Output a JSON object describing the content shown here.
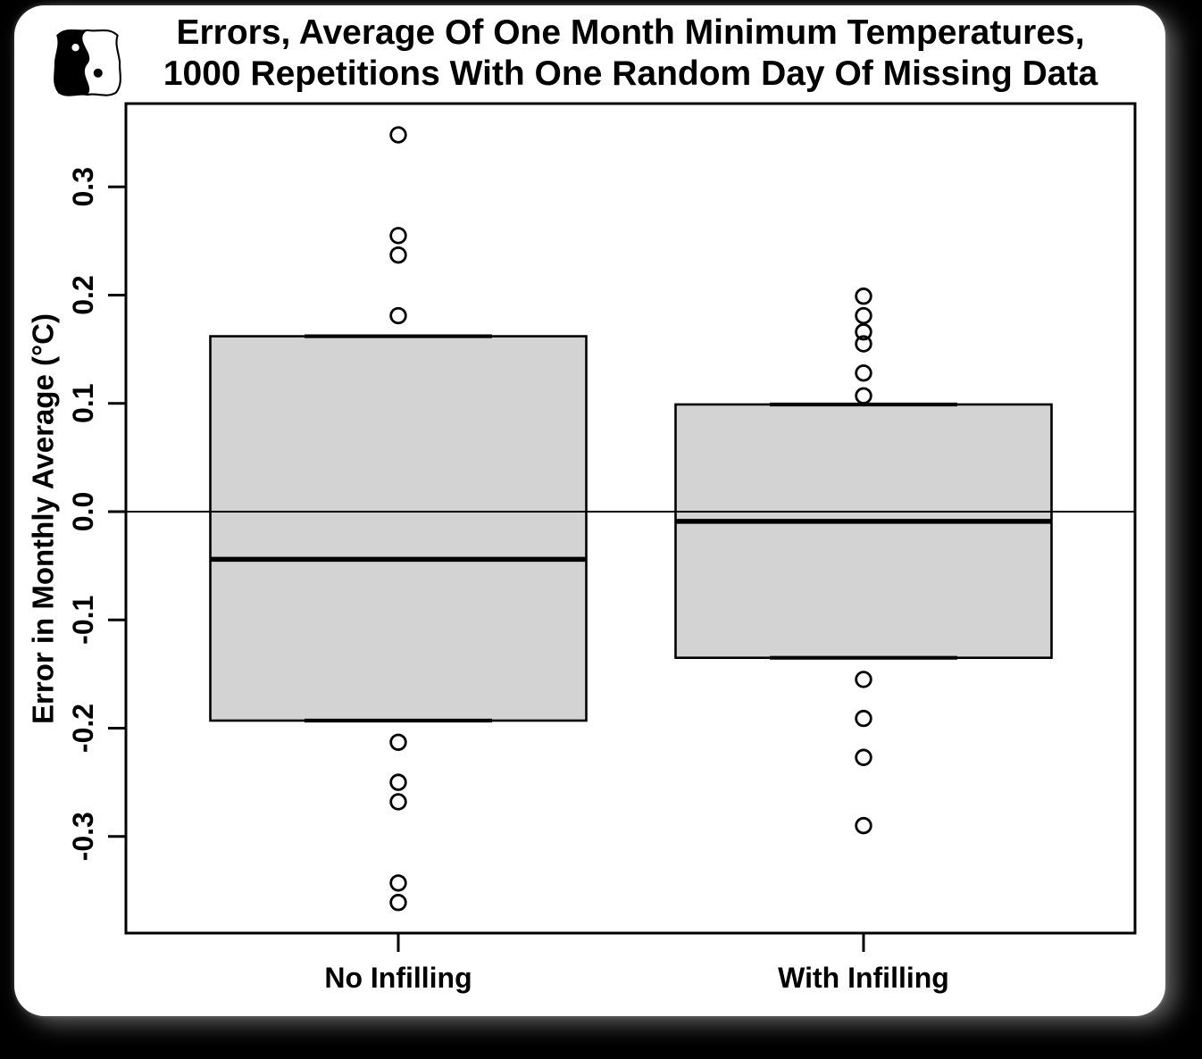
{
  "colors": {
    "background": "#000000",
    "card": "#ffffff",
    "box_fill": "#d3d3d3",
    "stroke": "#000000"
  },
  "icons": {
    "logo_icon": "yin-yang-owls"
  },
  "title": {
    "line1": "Errors, Average Of One Month Minimum Temperatures,",
    "line2": "1000 Repetitions With One Random Day Of Missing Data"
  },
  "y_axis": {
    "label": "Error in Monthly Average (°C)",
    "tick_labels": [
      "0.3",
      "0.2",
      "0.1",
      "0.0",
      "-0.1",
      "-0.2",
      "-0.3"
    ]
  },
  "x_axis": {
    "categories": [
      "No Infilling",
      "With Infilling"
    ]
  },
  "chart_data": {
    "type": "boxplot",
    "title": "Errors, Average Of One Month Minimum Temperatures, 1000 Repetitions With One Random Day Of Missing Data",
    "ylabel": "Error in Monthly Average (°C)",
    "xlabel": "",
    "ylim": [
      -0.38,
      0.37
    ],
    "yticks": [
      0.3,
      0.2,
      0.1,
      0.0,
      -0.1,
      -0.2,
      -0.3
    ],
    "grid": false,
    "reference_line_y": 0.0,
    "legend": "none",
    "categories": [
      "No Infilling",
      "With Infilling"
    ],
    "series": [
      {
        "name": "No Infilling",
        "q1": -0.193,
        "median": -0.044,
        "q3": 0.162,
        "whisker_low": -0.193,
        "whisker_high": 0.162,
        "outliers_high": [
          0.348,
          0.255,
          0.237,
          0.181
        ],
        "outliers_low": [
          -0.213,
          -0.25,
          -0.268,
          -0.343,
          -0.361
        ]
      },
      {
        "name": "With Infilling",
        "q1": -0.135,
        "median": -0.009,
        "q3": 0.099,
        "whisker_low": -0.135,
        "whisker_high": 0.099,
        "outliers_high": [
          0.199,
          0.181,
          0.166,
          0.155,
          0.128,
          0.107
        ],
        "outliers_low": [
          -0.155,
          -0.191,
          -0.227,
          -0.29
        ]
      }
    ]
  }
}
